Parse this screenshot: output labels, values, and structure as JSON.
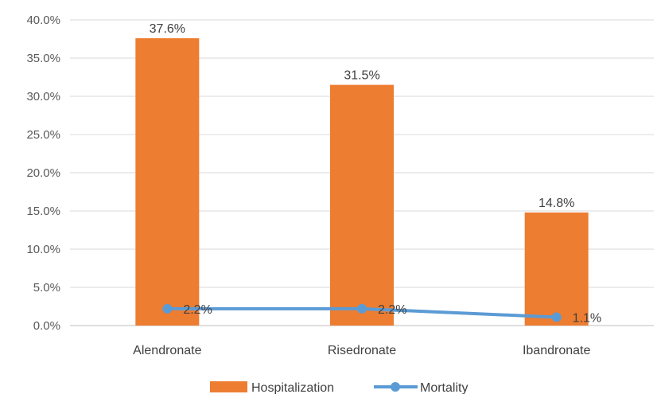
{
  "chart_data": {
    "type": "bar",
    "categories": [
      "Alendronate",
      "Risedronate",
      "Ibandronate"
    ],
    "series": [
      {
        "name": "Hospitalization",
        "kind": "bar",
        "color": "#ED7D31",
        "values": [
          37.6,
          31.5,
          14.8
        ],
        "labels": [
          "37.6%",
          "31.5%",
          "14.8%"
        ]
      },
      {
        "name": "Mortality",
        "kind": "line",
        "color": "#5B9BD5",
        "values": [
          2.2,
          2.2,
          1.1
        ],
        "labels": [
          "2.2%",
          "2.2%",
          "1.1%"
        ]
      }
    ],
    "ylim": [
      0,
      40
    ],
    "yticks": [
      0,
      5,
      10,
      15,
      20,
      25,
      30,
      35,
      40
    ],
    "ytick_labels": [
      "0.0%",
      "5.0%",
      "10.0%",
      "15.0%",
      "20.0%",
      "25.0%",
      "30.0%",
      "35.0%",
      "40.0%"
    ],
    "title": "",
    "xlabel": "",
    "ylabel": "",
    "grid": true,
    "legend_position": "bottom"
  }
}
